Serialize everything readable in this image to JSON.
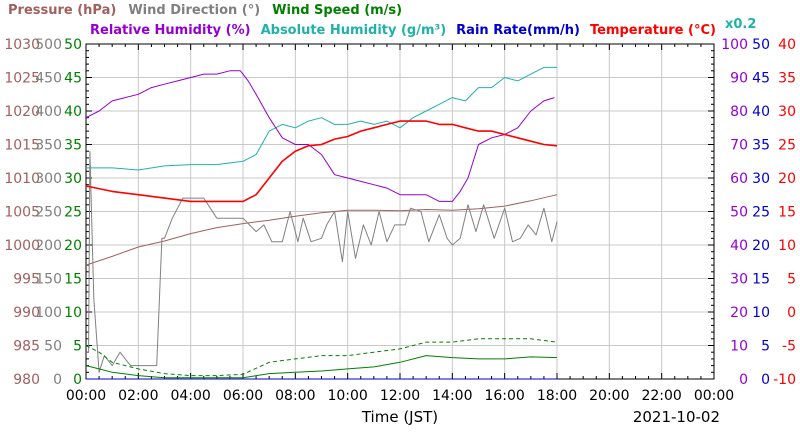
{
  "chart_data": {
    "type": "line",
    "date_label": "2021-10-02",
    "xlabel": "Time (JST)",
    "x_ticks": [
      "00:00",
      "02:00",
      "04:00",
      "06:00",
      "08:00",
      "10:00",
      "12:00",
      "14:00",
      "16:00",
      "18:00",
      "20:00",
      "22:00",
      "00:00"
    ],
    "header": {
      "row1": [
        {
          "key": "pressure",
          "text": "Pressure (hPa)",
          "color": "#a0605f"
        },
        {
          "key": "wind_direction",
          "text": "Wind Direction (°)",
          "color": "#808080"
        },
        {
          "key": "wind_speed",
          "text": "Wind Speed (m/s)",
          "color": "#008000"
        }
      ],
      "row2": [
        {
          "key": "humidity",
          "text": "Relative Humidity (%)",
          "color": "#9400d3"
        },
        {
          "key": "abs_humidity",
          "text": "Absolute Humidity (g/m³)",
          "color": "#20b2aa"
        },
        {
          "key": "rain",
          "text": "Rain Rate(mm/h)",
          "color": "#0000cd"
        },
        {
          "key": "temperature",
          "text": "Temperature (°C)",
          "color": "#ff0000"
        }
      ],
      "note": {
        "text": "x0.2",
        "color": "#20b2aa"
      }
    },
    "axes": {
      "pressure": {
        "ticks": [
          "1030",
          "1025",
          "1020",
          "1015",
          "1010",
          "1005",
          "1000",
          "995",
          "990",
          "985",
          "980"
        ],
        "range": [
          980,
          1030
        ],
        "color": "#a0605f"
      },
      "wind_direction": {
        "ticks": [
          "500",
          "450",
          "400",
          "350",
          "300",
          "250",
          "200",
          "150",
          "100",
          "50",
          "0"
        ],
        "range": [
          0,
          500
        ],
        "color": "#808080"
      },
      "wind_speed": {
        "ticks": [
          "50",
          "45",
          "40",
          "35",
          "30",
          "25",
          "20",
          "15",
          "10",
          "5",
          "0"
        ],
        "range": [
          0,
          50
        ],
        "color": "#008000"
      },
      "humidity": {
        "ticks": [
          "100",
          "90",
          "80",
          "70",
          "60",
          "50",
          "40",
          "30",
          "20",
          "10",
          "0"
        ],
        "range": [
          0,
          100
        ],
        "color": "#9400d3"
      },
      "rain": {
        "ticks": [
          "50",
          "45",
          "40",
          "35",
          "30",
          "25",
          "20",
          "15",
          "10",
          "5",
          "0"
        ],
        "range": [
          0,
          50
        ],
        "color": "#0000cd"
      },
      "temperature": {
        "ticks": [
          "40",
          "35",
          "30",
          "25",
          "20",
          "15",
          "10",
          "5",
          "0",
          "-5",
          "-10"
        ],
        "range": [
          -10,
          40
        ],
        "color": "#ff0000"
      }
    },
    "grid": true,
    "series": [
      {
        "key": "pressure",
        "name": "Pressure (hPa)",
        "axis": "pressure",
        "color": "#a0605f",
        "x_hours": [
          0,
          1,
          2,
          3,
          4,
          5,
          6,
          7,
          8,
          9,
          10,
          11,
          12,
          13,
          14,
          15,
          16,
          17,
          18
        ],
        "y": [
          997.0,
          998.3,
          999.7,
          1000.6,
          1001.7,
          1002.6,
          1003.2,
          1003.7,
          1004.3,
          1004.8,
          1005.2,
          1005.2,
          1005.1,
          1005.3,
          1005.2,
          1005.4,
          1005.8,
          1006.6,
          1007.5
        ]
      },
      {
        "key": "wind_direction",
        "name": "Wind Direction (°)",
        "axis": "wind_direction",
        "color": "#808080",
        "x_hours": [
          0,
          0.1,
          0.15,
          0.3,
          0.5,
          0.7,
          1.0,
          1.3,
          1.7,
          2.0,
          2.3,
          2.5,
          2.7,
          2.9,
          3.0,
          3.3,
          3.7,
          4.0,
          4.5,
          5.0,
          5.5,
          6.0,
          6.5,
          6.8,
          7.1,
          7.5,
          7.8,
          8.1,
          8.3,
          8.6,
          9.0,
          9.2,
          9.5,
          9.8,
          10.0,
          10.3,
          10.6,
          10.9,
          11.2,
          11.5,
          11.8,
          12.2,
          12.4,
          12.8,
          13.1,
          13.5,
          13.8,
          14.0,
          14.3,
          14.6,
          14.9,
          15.2,
          15.6,
          16.0,
          16.3,
          16.6,
          16.9,
          17.2,
          17.5,
          17.8,
          18.0
        ],
        "y": [
          40,
          40,
          340,
          120,
          10,
          35,
          20,
          40,
          20,
          20,
          20,
          20,
          20,
          210,
          210,
          240,
          270,
          270,
          270,
          240,
          240,
          240,
          220,
          230,
          205,
          205,
          250,
          205,
          240,
          205,
          210,
          230,
          250,
          175,
          250,
          180,
          230,
          200,
          250,
          205,
          230,
          230,
          255,
          250,
          205,
          245,
          210,
          200,
          210,
          260,
          220,
          260,
          210,
          255,
          205,
          210,
          230,
          215,
          255,
          205,
          235
        ]
      },
      {
        "key": "wind_speed_avg",
        "name": "Wind Speed (m/s)",
        "axis": "wind_speed",
        "color": "#008000",
        "style": "solid",
        "x_hours": [
          0,
          0.5,
          1.0,
          2.0,
          3.0,
          4.0,
          5.0,
          6.0,
          7.0,
          8.0,
          9.0,
          10.0,
          11.0,
          12.0,
          13.0,
          14.0,
          15.0,
          16.0,
          17.0,
          18.0
        ],
        "y": [
          2.0,
          1.5,
          1.0,
          0.5,
          0.2,
          0.2,
          0.2,
          0.2,
          0.8,
          1.0,
          1.2,
          1.5,
          1.8,
          2.5,
          3.5,
          3.2,
          3.0,
          3.0,
          3.3,
          3.2
        ]
      },
      {
        "key": "wind_speed_max",
        "name": "Wind Speed (m/s)",
        "axis": "wind_speed",
        "color": "#008000",
        "style": "dashed",
        "x_hours": [
          0,
          0.5,
          1.0,
          2.0,
          3.0,
          4.0,
          5.0,
          6.0,
          7.0,
          8.0,
          9.0,
          10.0,
          11.0,
          12.0,
          13.0,
          14.0,
          15.0,
          16.0,
          17.0,
          18.0
        ],
        "y": [
          5.0,
          4.0,
          2.5,
          1.5,
          0.8,
          0.5,
          0.5,
          0.7,
          2.5,
          3.0,
          3.5,
          3.5,
          4.0,
          4.5,
          5.5,
          5.5,
          6.0,
          6.0,
          6.0,
          5.5
        ]
      },
      {
        "key": "humidity",
        "name": "Relative Humidity (%)",
        "axis": "humidity",
        "color": "#9400d3",
        "x_hours": [
          0,
          0.5,
          1.0,
          1.5,
          2.0,
          2.5,
          3.0,
          3.5,
          4.0,
          4.5,
          5.0,
          5.5,
          5.9,
          6.2,
          6.5,
          7.0,
          7.5,
          8.0,
          8.5,
          9.0,
          9.5,
          10.0,
          10.5,
          11.0,
          11.5,
          12.0,
          12.5,
          13.0,
          13.5,
          14.0,
          14.3,
          14.6,
          15.0,
          15.5,
          16.0,
          16.5,
          17.0,
          17.5,
          17.9
        ],
        "y": [
          78,
          80,
          83,
          84,
          85,
          87,
          88,
          89,
          90,
          91,
          91,
          92,
          92,
          89,
          85,
          78,
          72,
          70,
          70,
          67,
          61,
          60,
          59,
          58,
          57,
          55,
          55,
          55,
          53,
          53,
          56,
          60,
          70,
          72,
          73,
          75,
          80,
          83,
          84
        ]
      },
      {
        "key": "abs_humidity",
        "name": "Absolute Humidity (g/m³)",
        "axis": "wind_speed",
        "color": "#20b2aa",
        "x_hours": [
          0,
          1.0,
          2.0,
          3.0,
          4.0,
          5.0,
          6.0,
          6.5,
          7.0,
          7.5,
          8.0,
          8.5,
          9.0,
          9.5,
          10.0,
          10.5,
          11.0,
          11.5,
          12.0,
          12.5,
          13.0,
          13.5,
          14.0,
          14.5,
          15.0,
          15.5,
          16.0,
          16.5,
          17.0,
          17.5,
          18.0
        ],
        "y": [
          31.5,
          31.5,
          31.2,
          31.8,
          32.0,
          32.0,
          32.5,
          33.5,
          37.0,
          38.0,
          37.5,
          38.5,
          39.0,
          38.0,
          38.0,
          38.5,
          38.0,
          38.5,
          37.5,
          39.0,
          40.0,
          41.0,
          42.0,
          41.5,
          43.5,
          43.5,
          45.0,
          44.5,
          45.5,
          46.5,
          46.5
        ]
      },
      {
        "key": "rain",
        "name": "Rain Rate(mm/h)",
        "axis": "rain",
        "color": "#0000cd",
        "x_hours": [
          0,
          18
        ],
        "y": [
          0,
          0
        ]
      },
      {
        "key": "temperature",
        "name": "Temperature (°C)",
        "axis": "temperature",
        "color": "#ff0000",
        "x_hours": [
          0,
          1.0,
          2.0,
          3.0,
          4.0,
          5.0,
          6.0,
          6.5,
          7.0,
          7.5,
          8.0,
          8.5,
          9.0,
          9.5,
          10.0,
          10.5,
          11.0,
          11.5,
          12.0,
          12.5,
          13.0,
          13.5,
          14.0,
          14.5,
          15.0,
          15.5,
          16.0,
          16.5,
          17.0,
          17.5,
          18.0
        ],
        "y": [
          18.8,
          18.0,
          17.5,
          17.0,
          16.5,
          16.5,
          16.5,
          17.5,
          20.0,
          22.5,
          24.0,
          24.8,
          25.0,
          25.8,
          26.2,
          27.0,
          27.5,
          28.0,
          28.5,
          28.5,
          28.5,
          28.0,
          28.0,
          27.5,
          27.0,
          27.0,
          26.5,
          26.0,
          25.5,
          25.0,
          24.8
        ]
      }
    ]
  }
}
